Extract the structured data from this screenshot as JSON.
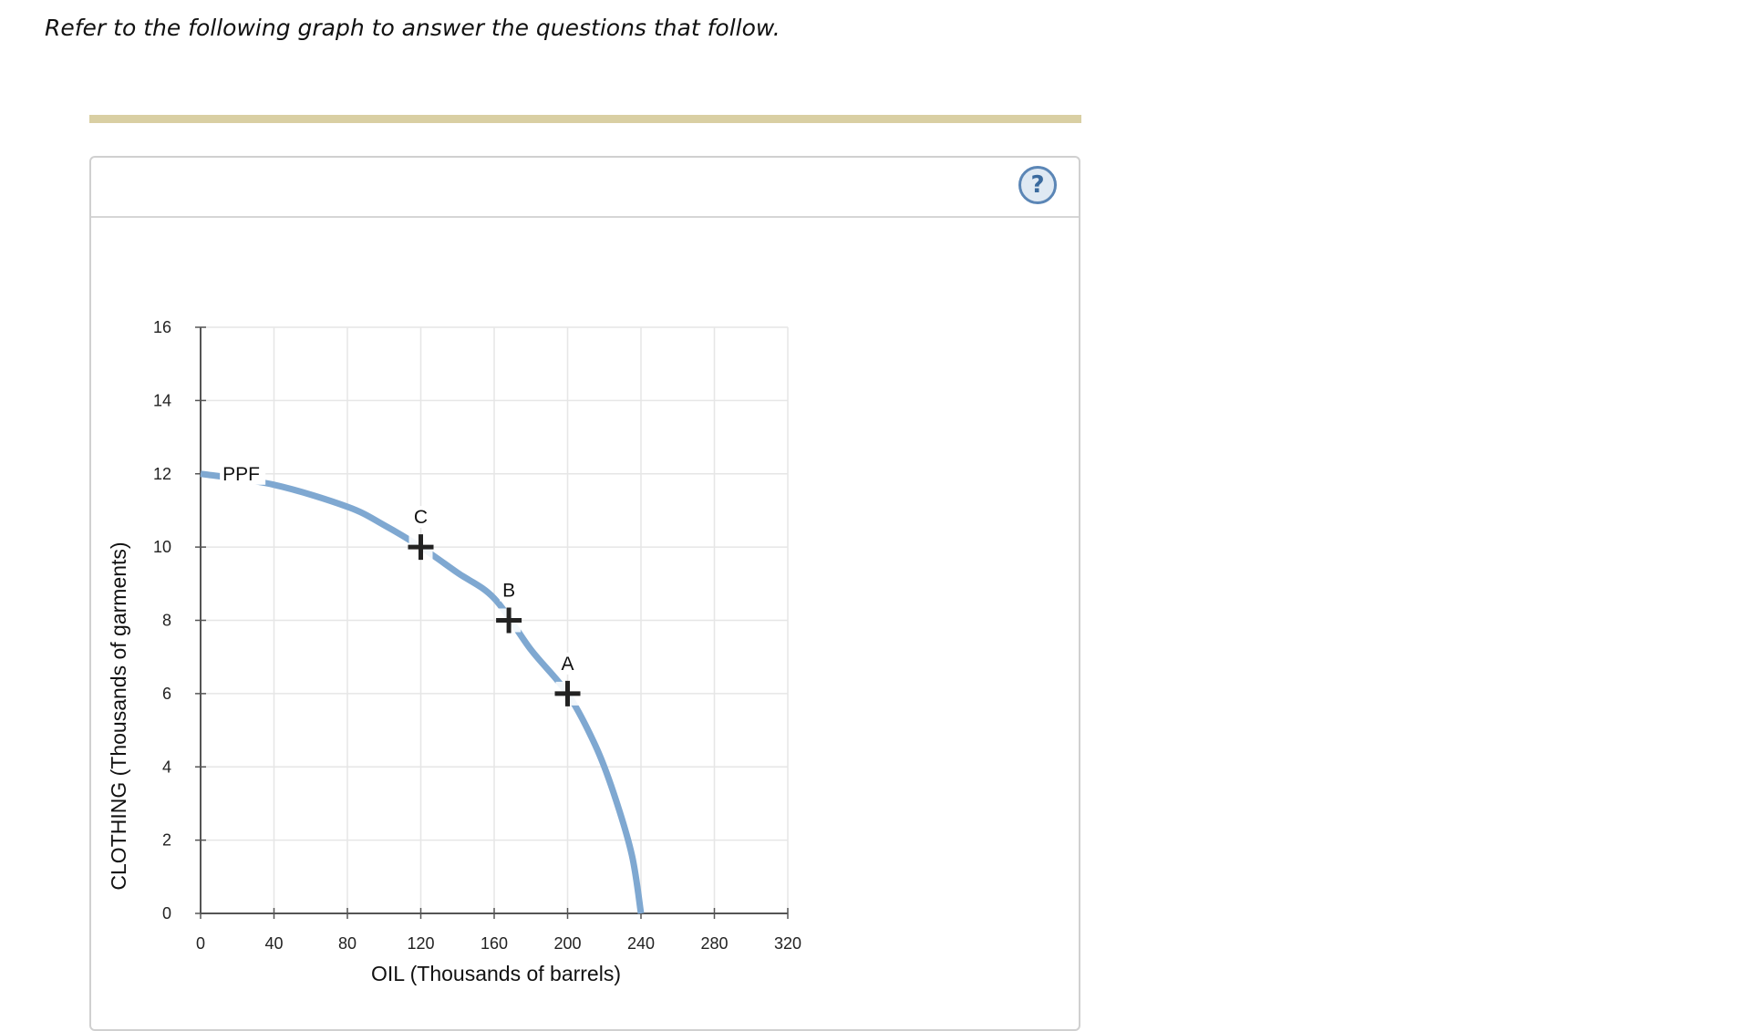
{
  "page": {
    "instruction": "Refer to the following graph to answer the questions that follow.",
    "help_symbol": "?",
    "help_icon": "question-circle-icon"
  },
  "colors": {
    "accent_bar": "#d9cfa3",
    "curve": "#7fa8d1",
    "grid": "#e6e6e6",
    "axis": "#555555",
    "marker": "#222222",
    "help_border": "#5b86b6"
  },
  "chart_data": {
    "type": "line",
    "title": "",
    "xlabel": "OIL (Thousands of barrels)",
    "ylabel": "CLOTHING (Thousands of garments)",
    "xlim": [
      0,
      320
    ],
    "ylim": [
      0,
      16
    ],
    "x_ticks": [
      0,
      40,
      80,
      120,
      160,
      200,
      240,
      280,
      320
    ],
    "y_ticks": [
      0,
      2,
      4,
      6,
      8,
      10,
      12,
      14,
      16
    ],
    "grid": true,
    "series": [
      {
        "name": "PPF",
        "x": [
          0,
          40,
          80,
          100,
          120,
          140,
          160,
          180,
          200,
          215,
          225,
          235,
          240
        ],
        "y": [
          12,
          11.7,
          11.1,
          10.6,
          10,
          9.3,
          8.6,
          7.2,
          6,
          4.6,
          3.3,
          1.6,
          0
        ]
      }
    ],
    "curve_label": "PPF",
    "points": [
      {
        "label": "C",
        "x": 120,
        "y": 10
      },
      {
        "label": "B",
        "x": 168,
        "y": 8
      },
      {
        "label": "A",
        "x": 200,
        "y": 6
      }
    ]
  }
}
